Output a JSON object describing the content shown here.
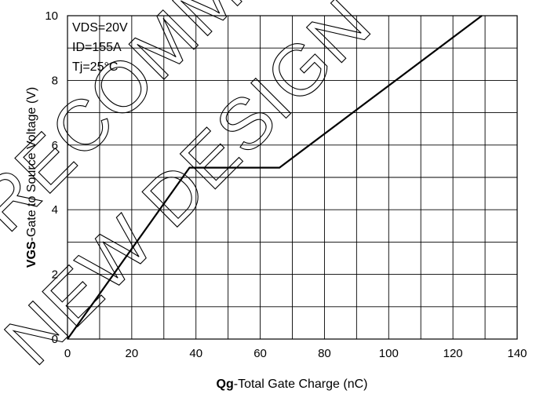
{
  "chart_data": {
    "type": "line",
    "xlabel_prefix": "Qg",
    "xlabel_rest": "-Total Gate Charge (nC)",
    "ylabel_prefix": "VGS",
    "ylabel_rest": "-Gate to Source Voltage (V)",
    "xlim": [
      0,
      140
    ],
    "ylim": [
      0,
      10
    ],
    "x_ticks": [
      0,
      20,
      40,
      60,
      80,
      100,
      120,
      140
    ],
    "y_ticks": [
      0,
      2,
      4,
      6,
      8,
      10
    ],
    "x_minor_step": 10,
    "y_minor_step": 1,
    "grid": true,
    "series": [
      {
        "x": [
          0,
          38,
          66,
          129
        ],
        "y": [
          0,
          5.3,
          5.3,
          10
        ]
      }
    ],
    "annotations": [
      "VDS=20V",
      "ID=155A",
      "Tj=25°C"
    ],
    "colors": {
      "line": "#000000",
      "grid": "#000000",
      "background": "#ffffff"
    }
  },
  "watermark": {
    "line1": "RECOMMEND",
    "line2": "NEW DESIGN"
  }
}
